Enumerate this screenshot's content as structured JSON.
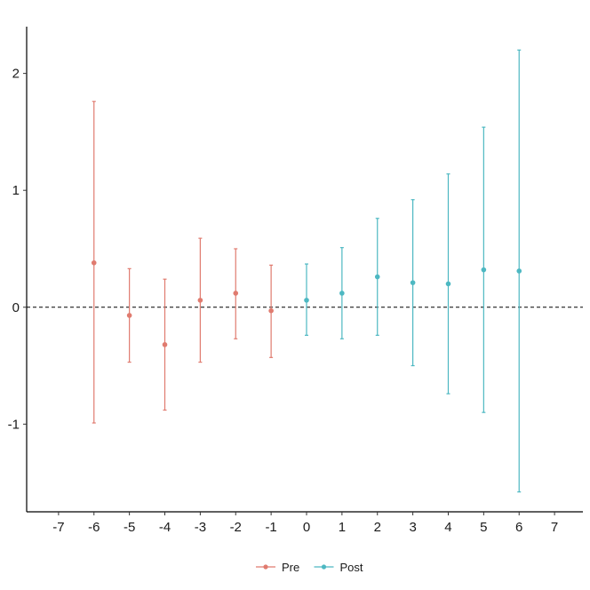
{
  "chart_data": {
    "type": "scatter",
    "subtype": "point-range (event study)",
    "x_ticks": [
      -7,
      -6,
      -5,
      -4,
      -3,
      -2,
      -1,
      0,
      1,
      2,
      3,
      4,
      5,
      6,
      7
    ],
    "y_ticks": [
      -1,
      0,
      1,
      2
    ],
    "xlim": [
      -7.9,
      7.8
    ],
    "ylim": [
      -1.75,
      2.4
    ],
    "reference_line": {
      "y": 0,
      "style": "dashed",
      "color": "#000000"
    },
    "grid": false,
    "legend": {
      "position": "bottom"
    },
    "series": [
      {
        "name": "Pre",
        "color": "#E07B6F",
        "points": [
          {
            "x": -6,
            "y": 0.38,
            "lower": -0.99,
            "upper": 1.76
          },
          {
            "x": -5,
            "y": -0.07,
            "lower": -0.47,
            "upper": 0.33
          },
          {
            "x": -4,
            "y": -0.32,
            "lower": -0.88,
            "upper": 0.24
          },
          {
            "x": -3,
            "y": 0.06,
            "lower": -0.47,
            "upper": 0.59
          },
          {
            "x": -2,
            "y": 0.12,
            "lower": -0.27,
            "upper": 0.5
          },
          {
            "x": -1,
            "y": -0.03,
            "lower": -0.43,
            "upper": 0.36
          }
        ]
      },
      {
        "name": "Post",
        "color": "#4DB8C2",
        "points": [
          {
            "x": 0,
            "y": 0.06,
            "lower": -0.24,
            "upper": 0.37
          },
          {
            "x": 1,
            "y": 0.12,
            "lower": -0.27,
            "upper": 0.51
          },
          {
            "x": 2,
            "y": 0.26,
            "lower": -0.24,
            "upper": 0.76
          },
          {
            "x": 3,
            "y": 0.21,
            "lower": -0.5,
            "upper": 0.92
          },
          {
            "x": 4,
            "y": 0.2,
            "lower": -0.74,
            "upper": 1.14
          },
          {
            "x": 5,
            "y": 0.32,
            "lower": -0.9,
            "upper": 1.54
          },
          {
            "x": 6,
            "y": 0.31,
            "lower": -1.58,
            "upper": 2.2
          }
        ]
      }
    ]
  }
}
